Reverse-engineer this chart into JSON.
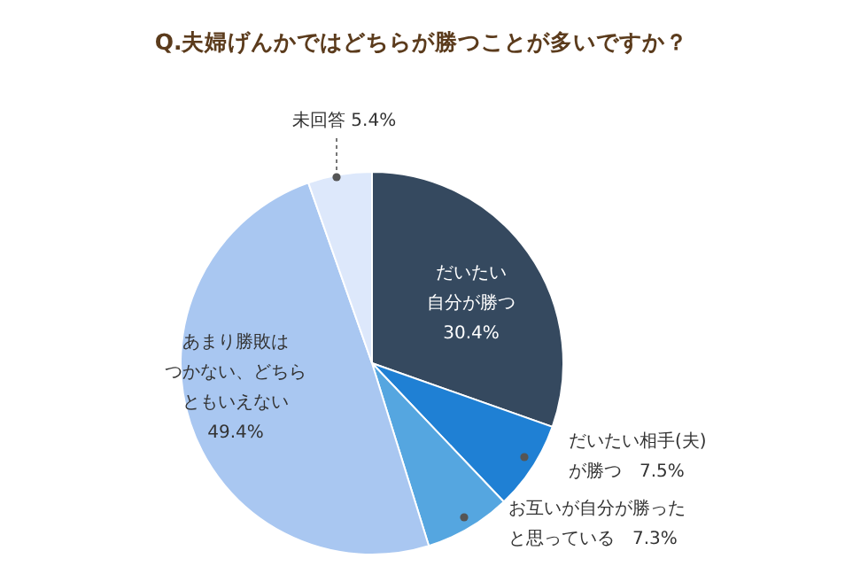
{
  "chart_data": {
    "type": "pie",
    "title": "Q.夫婦げんかではどちらが勝つことが多いですか？",
    "categories": [
      "だいたい自分が勝つ",
      "だいたい相手(夫)が勝つ",
      "お互いが自分が勝ったと思っている",
      "あまり勝敗はつかない、どちらともいえない",
      "未回答"
    ],
    "values": [
      30.4,
      7.5,
      7.3,
      49.4,
      5.4
    ],
    "colors": [
      "#35495f",
      "#1f80d4",
      "#55a6e0",
      "#a9c7f1",
      "#dde8fb"
    ],
    "value_labels": [
      "30.4%",
      "7.5%",
      "7.3%",
      "49.4%",
      "5.4%"
    ]
  }
}
